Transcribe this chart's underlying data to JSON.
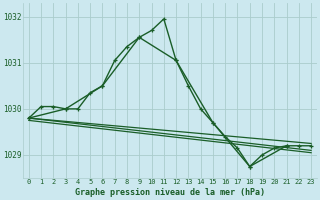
{
  "background_color": "#cce8ef",
  "grid_color": "#aacccc",
  "line_color": "#1a5e28",
  "title": "Graphe pression niveau de la mer (hPa)",
  "xlim": [
    -0.5,
    23.5
  ],
  "ylim": [
    1028.5,
    1032.3
  ],
  "yticks": [
    1029,
    1030,
    1031,
    1032
  ],
  "xticks": [
    0,
    1,
    2,
    3,
    4,
    5,
    6,
    7,
    8,
    9,
    10,
    11,
    12,
    13,
    14,
    15,
    16,
    17,
    18,
    19,
    20,
    21,
    22,
    23
  ],
  "series": [
    {
      "x": [
        0,
        1,
        2,
        3,
        4,
        5,
        6,
        7,
        8,
        9,
        10,
        11,
        12,
        13,
        14,
        15,
        16,
        17,
        18,
        19,
        20,
        21,
        22,
        23
      ],
      "y": [
        1029.8,
        1030.05,
        1030.05,
        1030.0,
        1030.0,
        1030.35,
        1030.5,
        1031.05,
        1031.35,
        1031.55,
        1031.7,
        1031.95,
        1031.05,
        1030.5,
        1030.0,
        1029.7,
        1029.4,
        1029.15,
        1028.75,
        1029.0,
        1029.15,
        1029.2,
        1029.2,
        1029.2
      ],
      "marker": "P",
      "lw": 1.0
    },
    {
      "x": [
        0,
        3,
        6,
        9,
        12,
        15,
        18,
        21
      ],
      "y": [
        1029.8,
        1030.0,
        1030.5,
        1031.55,
        1031.05,
        1029.7,
        1028.75,
        1029.2
      ],
      "marker": "P",
      "lw": 1.0
    },
    {
      "x": [
        0,
        23
      ],
      "y": [
        1029.8,
        1029.25
      ],
      "marker": null,
      "lw": 0.9
    },
    {
      "x": [
        0,
        23
      ],
      "y": [
        1029.8,
        1029.1
      ],
      "marker": null,
      "lw": 0.9
    },
    {
      "x": [
        0,
        23
      ],
      "y": [
        1029.75,
        1029.05
      ],
      "marker": null,
      "lw": 0.9
    }
  ]
}
